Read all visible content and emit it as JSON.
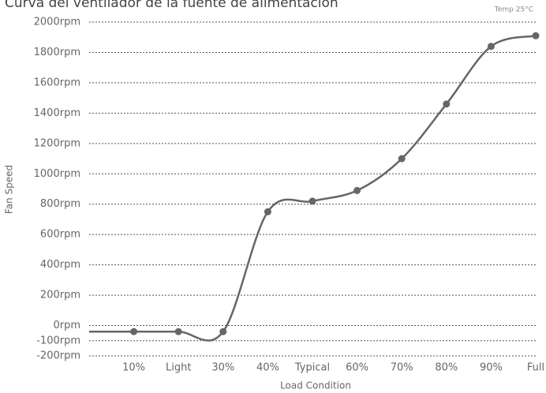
{
  "chart_data": {
    "type": "line",
    "title": "Curva del ventilador de la fuente de alimentación",
    "annotation": "Temp 25°C",
    "xlabel": "Load Condition",
    "ylabel": "Fan Speed",
    "categories": [
      null,
      "10%",
      "Light",
      "30%",
      "40%",
      "Typical",
      "60%",
      "70%",
      "80%",
      "90%",
      "Full"
    ],
    "values": [
      -40,
      -40,
      -40,
      -40,
      750,
      820,
      890,
      1100,
      1460,
      1840,
      1910
    ],
    "color": "#666666",
    "ylim": [
      -200,
      2000
    ],
    "yticks": [
      {
        "value": -200,
        "label": "-200rpm"
      },
      {
        "value": -100,
        "label": "-100rpm"
      },
      {
        "value": 0,
        "label": "0rpm"
      },
      {
        "value": 200,
        "label": "200rpm"
      },
      {
        "value": 400,
        "label": "400rpm"
      },
      {
        "value": 600,
        "label": "600rpm"
      },
      {
        "value": 800,
        "label": "800rpm"
      },
      {
        "value": 1000,
        "label": "1000rpm"
      },
      {
        "value": 1200,
        "label": "1200rpm"
      },
      {
        "value": 1400,
        "label": "1400rpm"
      },
      {
        "value": 1600,
        "label": "1600rpm"
      },
      {
        "value": 1800,
        "label": "1800rpm"
      },
      {
        "value": 2000,
        "label": "2000rpm"
      }
    ],
    "grid": true
  }
}
